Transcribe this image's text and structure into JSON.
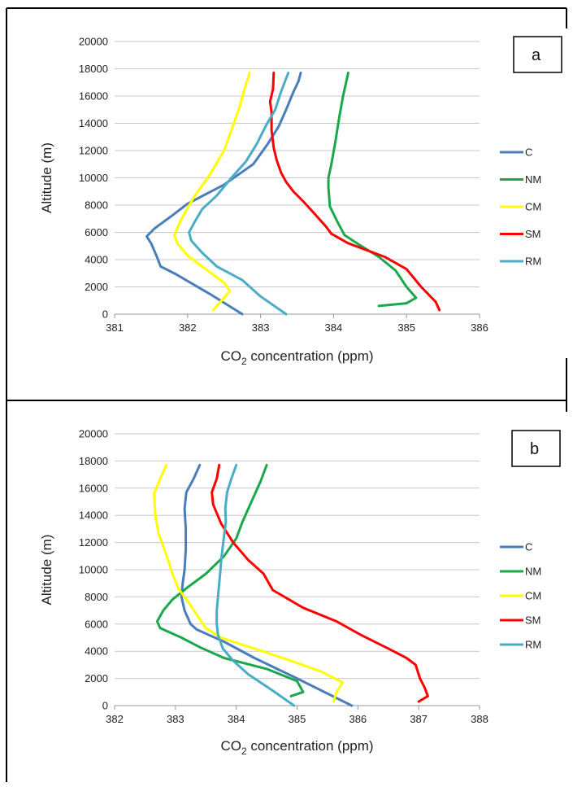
{
  "chart_data": [
    {
      "type": "line",
      "panel_label": "a",
      "xlabel_main": "CO",
      "xlabel_sub": "2",
      "xlabel_rest": " concentration (ppm)",
      "ylabel": "Altitude (m)",
      "xlim": [
        381,
        386
      ],
      "ylim": [
        0,
        20000
      ],
      "xticks": [
        381,
        382,
        383,
        384,
        385,
        386
      ],
      "yticks": [
        0,
        2000,
        4000,
        6000,
        8000,
        10000,
        12000,
        14000,
        16000,
        18000,
        20000
      ],
      "grid": "horizontal",
      "legend_position": "right",
      "series": [
        {
          "name": "C",
          "color": "#4a7ebb",
          "points": [
            [
              382.75,
              0
            ],
            [
              382.3,
              1500
            ],
            [
              381.85,
              2900
            ],
            [
              381.63,
              3500
            ],
            [
              381.58,
              4200
            ],
            [
              381.5,
              5200
            ],
            [
              381.44,
              5700
            ],
            [
              381.55,
              6300
            ],
            [
              381.78,
              7200
            ],
            [
              382.0,
              8100
            ],
            [
              382.5,
              9500
            ],
            [
              382.9,
              11000
            ],
            [
              383.1,
              12500
            ],
            [
              383.25,
              13800
            ],
            [
              383.35,
              15000
            ],
            [
              383.45,
              16300
            ],
            [
              383.52,
              17100
            ],
            [
              383.55,
              17700
            ]
          ]
        },
        {
          "name": "NM",
          "color": "#1aa84b",
          "points": [
            [
              384.62,
              600
            ],
            [
              385.0,
              800
            ],
            [
              385.13,
              1200
            ],
            [
              385.0,
              2000
            ],
            [
              384.85,
              3200
            ],
            [
              384.62,
              4200
            ],
            [
              384.35,
              5100
            ],
            [
              384.15,
              5800
            ],
            [
              384.05,
              6800
            ],
            [
              383.95,
              7900
            ],
            [
              383.93,
              9300
            ],
            [
              383.93,
              10000
            ],
            [
              383.97,
              11000
            ],
            [
              384.02,
              12500
            ],
            [
              384.08,
              14500
            ],
            [
              384.13,
              16000
            ],
            [
              384.18,
              17200
            ],
            [
              384.2,
              17700
            ]
          ]
        },
        {
          "name": "CM",
          "color": "#ffff00",
          "points": [
            [
              382.35,
              300
            ],
            [
              382.5,
              1200
            ],
            [
              382.58,
              1700
            ],
            [
              382.5,
              2300
            ],
            [
              382.25,
              3300
            ],
            [
              382.0,
              4300
            ],
            [
              381.86,
              5200
            ],
            [
              381.82,
              5800
            ],
            [
              381.9,
              6800
            ],
            [
              381.98,
              7600
            ],
            [
              382.1,
              8700
            ],
            [
              382.3,
              10200
            ],
            [
              382.5,
              12000
            ],
            [
              382.6,
              13500
            ],
            [
              382.7,
              15000
            ],
            [
              382.78,
              16500
            ],
            [
              382.85,
              17700
            ]
          ]
        },
        {
          "name": "SM",
          "color": "#ff0000",
          "points": [
            [
              385.45,
              300
            ],
            [
              385.4,
              900
            ],
            [
              385.2,
              2000
            ],
            [
              385.0,
              3300
            ],
            [
              384.7,
              4200
            ],
            [
              384.2,
              5200
            ],
            [
              383.97,
              5900
            ],
            [
              383.9,
              6400
            ],
            [
              383.75,
              7300
            ],
            [
              383.58,
              8300
            ],
            [
              383.45,
              9000
            ],
            [
              383.35,
              9700
            ],
            [
              383.28,
              10400
            ],
            [
              383.22,
              11300
            ],
            [
              383.18,
              12200
            ],
            [
              383.15,
              13500
            ],
            [
              383.15,
              14800
            ],
            [
              383.13,
              15600
            ],
            [
              383.17,
              16500
            ],
            [
              383.18,
              17700
            ]
          ]
        },
        {
          "name": "RM",
          "color": "#4bacc6",
          "points": [
            [
              383.35,
              0
            ],
            [
              383.0,
              1300
            ],
            [
              382.75,
              2500
            ],
            [
              382.4,
              3500
            ],
            [
              382.2,
              4500
            ],
            [
              382.05,
              5400
            ],
            [
              382.02,
              6000
            ],
            [
              382.1,
              6800
            ],
            [
              382.2,
              7700
            ],
            [
              382.4,
              8700
            ],
            [
              382.6,
              10000
            ],
            [
              382.8,
              11200
            ],
            [
              382.95,
              12500
            ],
            [
              383.08,
              13900
            ],
            [
              383.2,
              15000
            ],
            [
              383.28,
              16300
            ],
            [
              383.38,
              17700
            ]
          ]
        }
      ]
    },
    {
      "type": "line",
      "panel_label": "b",
      "xlabel_main": "CO",
      "xlabel_sub": "2",
      "xlabel_rest": " concentration (ppm)",
      "ylabel": "Altitude (m)",
      "xlim": [
        382,
        388
      ],
      "ylim": [
        0,
        20000
      ],
      "xticks": [
        382,
        383,
        384,
        385,
        386,
        387,
        388
      ],
      "yticks": [
        0,
        2000,
        4000,
        6000,
        8000,
        10000,
        12000,
        14000,
        16000,
        18000,
        20000
      ],
      "grid": "horizontal",
      "legend_position": "right",
      "series": [
        {
          "name": "C",
          "color": "#4a7ebb",
          "points": [
            [
              385.9,
              0
            ],
            [
              385.0,
              2000
            ],
            [
              384.3,
              3500
            ],
            [
              383.8,
              4700
            ],
            [
              383.35,
              5600
            ],
            [
              383.25,
              6000
            ],
            [
              383.15,
              7000
            ],
            [
              383.1,
              8000
            ],
            [
              383.12,
              9000
            ],
            [
              383.15,
              10000
            ],
            [
              383.17,
              11500
            ],
            [
              383.17,
              13000
            ],
            [
              383.15,
              14500
            ],
            [
              383.18,
              15700
            ],
            [
              383.3,
              16700
            ],
            [
              383.4,
              17700
            ]
          ]
        },
        {
          "name": "NM",
          "color": "#1aa84b",
          "points": [
            [
              384.9,
              700
            ],
            [
              385.1,
              1000
            ],
            [
              385.0,
              1800
            ],
            [
              384.5,
              2700
            ],
            [
              383.8,
              3500
            ],
            [
              383.4,
              4300
            ],
            [
              383.1,
              5000
            ],
            [
              382.75,
              5700
            ],
            [
              382.7,
              6200
            ],
            [
              382.8,
              7000
            ],
            [
              382.95,
              7800
            ],
            [
              383.2,
              8700
            ],
            [
              383.5,
              9700
            ],
            [
              383.8,
              11000
            ],
            [
              384.0,
              12300
            ],
            [
              384.1,
              13500
            ],
            [
              384.2,
              14500
            ],
            [
              384.3,
              15500
            ],
            [
              384.4,
              16500
            ],
            [
              384.5,
              17700
            ]
          ]
        },
        {
          "name": "CM",
          "color": "#ffff00",
          "points": [
            [
              385.6,
              300
            ],
            [
              385.65,
              1000
            ],
            [
              385.75,
              1700
            ],
            [
              385.4,
              2500
            ],
            [
              384.9,
              3300
            ],
            [
              384.3,
              4200
            ],
            [
              383.75,
              5000
            ],
            [
              383.5,
              5700
            ],
            [
              383.35,
              6700
            ],
            [
              383.2,
              7700
            ],
            [
              383.05,
              8600
            ],
            [
              382.95,
              9700
            ],
            [
              382.88,
              10700
            ],
            [
              382.8,
              11700
            ],
            [
              382.72,
              12700
            ],
            [
              382.67,
              14000
            ],
            [
              382.65,
              15600
            ],
            [
              382.75,
              16700
            ],
            [
              382.85,
              17700
            ]
          ]
        },
        {
          "name": "SM",
          "color": "#ff0000",
          "points": [
            [
              387.0,
              300
            ],
            [
              387.15,
              700
            ],
            [
              387.1,
              1300
            ],
            [
              387.02,
              2000
            ],
            [
              386.95,
              3000
            ],
            [
              386.8,
              3500
            ],
            [
              386.5,
              4200
            ],
            [
              386.05,
              5200
            ],
            [
              385.65,
              6200
            ],
            [
              385.1,
              7200
            ],
            [
              384.6,
              8500
            ],
            [
              384.45,
              9700
            ],
            [
              384.2,
              10700
            ],
            [
              383.95,
              12000
            ],
            [
              383.75,
              13400
            ],
            [
              383.62,
              14800
            ],
            [
              383.6,
              15700
            ],
            [
              383.68,
              16700
            ],
            [
              383.72,
              17700
            ]
          ]
        },
        {
          "name": "RM",
          "color": "#4bacc6",
          "points": [
            [
              384.95,
              0
            ],
            [
              384.6,
              1100
            ],
            [
              384.2,
              2300
            ],
            [
              383.95,
              3300
            ],
            [
              383.78,
              4200
            ],
            [
              383.7,
              5200
            ],
            [
              383.68,
              6000
            ],
            [
              383.68,
              7000
            ],
            [
              383.7,
              8000
            ],
            [
              383.73,
              9500
            ],
            [
              383.76,
              11000
            ],
            [
              383.8,
              12500
            ],
            [
              383.83,
              13500
            ],
            [
              383.82,
              14500
            ],
            [
              383.85,
              15700
            ],
            [
              383.92,
              16700
            ],
            [
              384.0,
              17700
            ]
          ]
        }
      ]
    }
  ]
}
